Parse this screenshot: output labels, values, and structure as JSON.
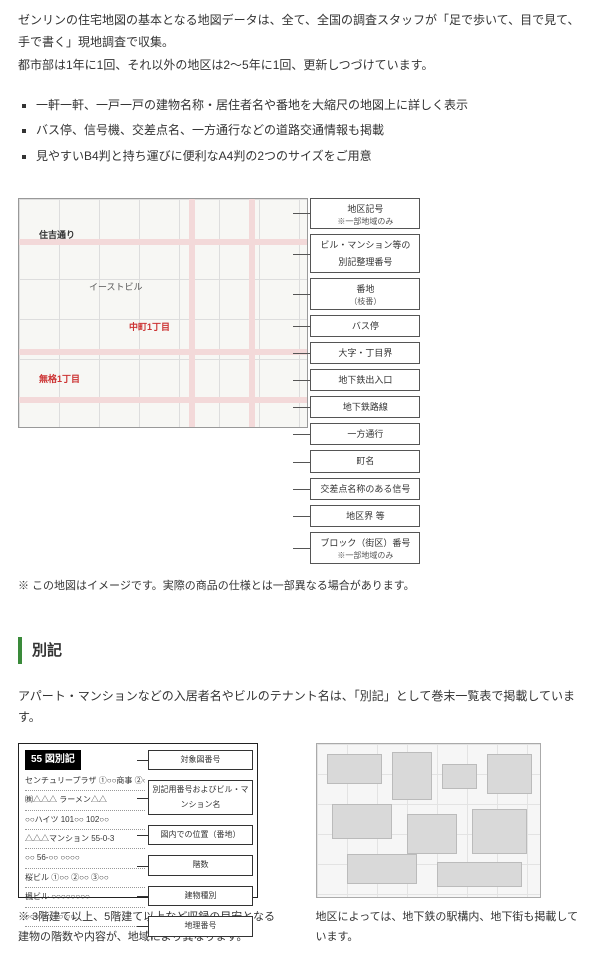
{
  "intro": {
    "p1": "ゼンリンの住宅地図の基本となる地図データは、全て、全国の調査スタッフが「足で歩いて、目で見て、手で書く」現地調査で収集。",
    "p2": "都市部は1年に1回、それ以外の地区は2～5年に1回、更新しつづけています。"
  },
  "features": [
    "一軒一軒、一戸一戸の建物名称・居住者名や番地を大縮尺の地図上に詳しく表示",
    "バス停、信号機、交差点名、一方通行などの道路交通情報も掲載",
    "見やすいB4判と持ち運びに便利なA4判の2つのサイズをご用意"
  ],
  "map": {
    "street_label": "住吉通り",
    "block_label_1": "中町1丁目",
    "block_label_2": "無格1丁目",
    "bldg_label": "イーストビル",
    "callouts": [
      {
        "t": "地区記号",
        "s": "※一部地域のみ"
      },
      {
        "t": "ビル・マンション等の別記整理番号",
        "s": ""
      },
      {
        "t": "番地",
        "s": "（枝番）"
      },
      {
        "t": "バス停",
        "s": ""
      },
      {
        "t": "大字・丁目界",
        "s": ""
      },
      {
        "t": "地下鉄出入口",
        "s": ""
      },
      {
        "t": "地下鉄路線",
        "s": ""
      },
      {
        "t": "一方通行",
        "s": ""
      },
      {
        "t": "町名",
        "s": ""
      },
      {
        "t": "交差点名称のある信号",
        "s": ""
      },
      {
        "t": "地区界 等",
        "s": ""
      },
      {
        "t": "ブロック（街区）番号",
        "s": "※一部地域のみ"
      }
    ],
    "note": "※ この地図はイメージです。実際の商品の仕様とは一部異なる場合があります。"
  },
  "section_bekki": {
    "heading": "別記",
    "lead": "アパート・マンションなどの入居者名やビルのテナント名は、「別記」として巻末一覧表で掲載しています。",
    "fig_title": "55 図別記",
    "list": [
      "センチュリープラザ  ①○○商事 ②○○歯科 ③○○店",
      "㈱△△△  ラーメン△△",
      "○○ハイツ  101○○ 102○○",
      "△△△マンション  55-0-3",
      "○○ 56-○○  ○○○○",
      "桜ビル  ①○○ ②○○ ③○○",
      "楓ビル  ○○○○○○○○",
      "○○○  ○○ ○○ ○○"
    ],
    "side_callouts": [
      "対象図番号",
      "別記用番号およびビル・マンション名",
      "図内での位置（番地）",
      "階数",
      "建物種別",
      "地理番号"
    ],
    "note": "※ 3階建て以上、5階建て以上など収録の目安となる建物の階数や内容が、地域により異なります。"
  },
  "section_underground": {
    "note": "地区によっては、地下鉄の駅構内、地下街も掲載しています。"
  },
  "colors": {
    "accent_green": "#3a8a3a",
    "road_pink": "#f3d9d9",
    "label_red": "#c33"
  }
}
